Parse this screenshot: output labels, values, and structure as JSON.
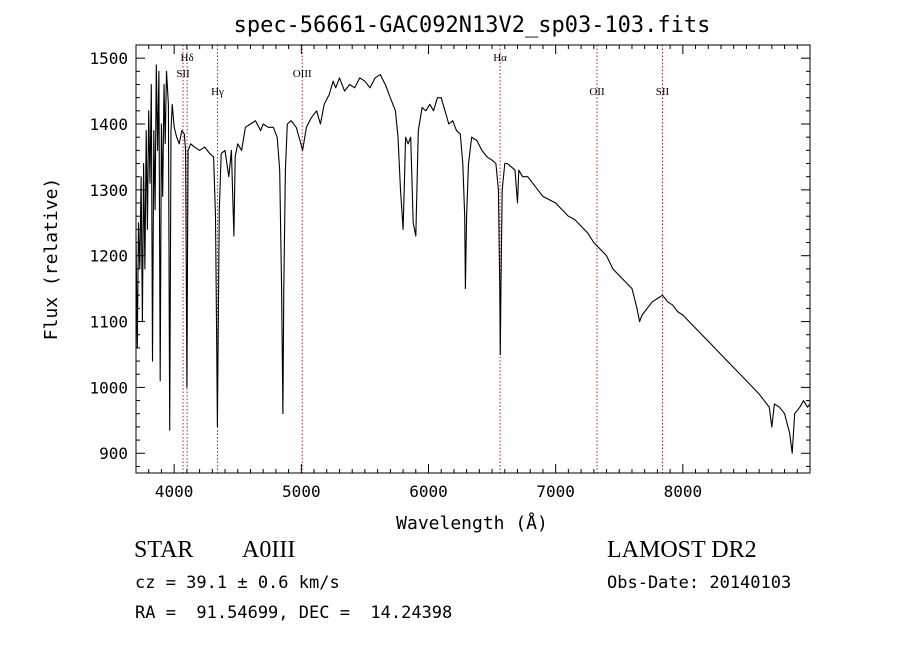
{
  "chart_data": {
    "type": "line",
    "title": "spec-56661-GAC092N13V2_sp03-103.fits",
    "xlabel": "Wavelength (Å)",
    "ylabel": "Flux (relative)",
    "xlim": [
      3700,
      9000
    ],
    "ylim": [
      870,
      1520
    ],
    "xticks": [
      4000,
      5000,
      6000,
      7000,
      8000
    ],
    "xtick_labels": [
      "4000",
      "5000",
      "6000",
      "7000",
      "8000"
    ],
    "yticks": [
      900,
      1000,
      1100,
      1200,
      1300,
      1400,
      1500
    ],
    "ytick_labels": [
      "900",
      "1000",
      "1100",
      "1200",
      "1300",
      "1400",
      "1500"
    ],
    "grid": false,
    "legend": "none",
    "line_color": "#000000",
    "marker_color": "#b22222",
    "markers": [
      {
        "label": "Hδ",
        "x": 4102,
        "row": 0
      },
      {
        "label": "SII",
        "x": 4070,
        "row": 1
      },
      {
        "label": "Hγ",
        "x": 4341,
        "row": 2
      },
      {
        "label": "OIII",
        "x": 5007,
        "row": 1
      },
      {
        "label": "Hα",
        "x": 6563,
        "row": 0
      },
      {
        "label": "OII",
        "x": 7325,
        "row": 2
      },
      {
        "label": "SII",
        "x": 7840,
        "row": 2
      }
    ],
    "series": [
      {
        "points": [
          [
            3700,
            1230
          ],
          [
            3710,
            1060
          ],
          [
            3720,
            1250
          ],
          [
            3730,
            1180
          ],
          [
            3740,
            1320
          ],
          [
            3750,
            1100
          ],
          [
            3760,
            1340
          ],
          [
            3770,
            1180
          ],
          [
            3780,
            1390
          ],
          [
            3790,
            1240
          ],
          [
            3800,
            1420
          ],
          [
            3810,
            1310
          ],
          [
            3820,
            1460
          ],
          [
            3830,
            1040
          ],
          [
            3840,
            1390
          ],
          [
            3850,
            1270
          ],
          [
            3860,
            1490
          ],
          [
            3870,
            1360
          ],
          [
            3880,
            1480
          ],
          [
            3890,
            1010
          ],
          [
            3900,
            1400
          ],
          [
            3910,
            1290
          ],
          [
            3920,
            1460
          ],
          [
            3930,
            1370
          ],
          [
            3940,
            1480
          ],
          [
            3955,
            1430
          ],
          [
            3965,
            935
          ],
          [
            3975,
            1390
          ],
          [
            3985,
            1430
          ],
          [
            4000,
            1395
          ],
          [
            4020,
            1380
          ],
          [
            4040,
            1370
          ],
          [
            4060,
            1390
          ],
          [
            4080,
            1385
          ],
          [
            4090,
            1360
          ],
          [
            4095,
            1200
          ],
          [
            4100,
            1000
          ],
          [
            4105,
            1200
          ],
          [
            4110,
            1360
          ],
          [
            4130,
            1370
          ],
          [
            4160,
            1365
          ],
          [
            4200,
            1360
          ],
          [
            4240,
            1365
          ],
          [
            4280,
            1355
          ],
          [
            4310,
            1350
          ],
          [
            4325,
            1260
          ],
          [
            4335,
            1050
          ],
          [
            4340,
            940
          ],
          [
            4345,
            1050
          ],
          [
            4355,
            1270
          ],
          [
            4370,
            1355
          ],
          [
            4400,
            1360
          ],
          [
            4430,
            1320
          ],
          [
            4450,
            1360
          ],
          [
            4470,
            1230
          ],
          [
            4480,
            1350
          ],
          [
            4500,
            1370
          ],
          [
            4530,
            1360
          ],
          [
            4560,
            1395
          ],
          [
            4600,
            1400
          ],
          [
            4640,
            1405
          ],
          [
            4680,
            1390
          ],
          [
            4700,
            1400
          ],
          [
            4740,
            1395
          ],
          [
            4780,
            1395
          ],
          [
            4810,
            1380
          ],
          [
            4830,
            1330
          ],
          [
            4845,
            1150
          ],
          [
            4855,
            960
          ],
          [
            4862,
            1150
          ],
          [
            4875,
            1330
          ],
          [
            4890,
            1400
          ],
          [
            4920,
            1405
          ],
          [
            4960,
            1395
          ],
          [
            4990,
            1375
          ],
          [
            5010,
            1360
          ],
          [
            5040,
            1395
          ],
          [
            5080,
            1410
          ],
          [
            5120,
            1420
          ],
          [
            5150,
            1400
          ],
          [
            5180,
            1430
          ],
          [
            5220,
            1445
          ],
          [
            5250,
            1465
          ],
          [
            5270,
            1455
          ],
          [
            5300,
            1470
          ],
          [
            5340,
            1450
          ],
          [
            5380,
            1460
          ],
          [
            5420,
            1455
          ],
          [
            5460,
            1470
          ],
          [
            5500,
            1465
          ],
          [
            5540,
            1455
          ],
          [
            5580,
            1470
          ],
          [
            5620,
            1475
          ],
          [
            5660,
            1460
          ],
          [
            5700,
            1440
          ],
          [
            5740,
            1420
          ],
          [
            5760,
            1380
          ],
          [
            5780,
            1300
          ],
          [
            5800,
            1240
          ],
          [
            5820,
            1380
          ],
          [
            5840,
            1370
          ],
          [
            5860,
            1380
          ],
          [
            5880,
            1250
          ],
          [
            5900,
            1230
          ],
          [
            5920,
            1390
          ],
          [
            5950,
            1425
          ],
          [
            5980,
            1420
          ],
          [
            6010,
            1430
          ],
          [
            6040,
            1420
          ],
          [
            6070,
            1440
          ],
          [
            6100,
            1440
          ],
          [
            6130,
            1420
          ],
          [
            6160,
            1400
          ],
          [
            6190,
            1405
          ],
          [
            6220,
            1390
          ],
          [
            6250,
            1385
          ],
          [
            6270,
            1340
          ],
          [
            6285,
            1260
          ],
          [
            6290,
            1150
          ],
          [
            6300,
            1260
          ],
          [
            6315,
            1340
          ],
          [
            6340,
            1380
          ],
          [
            6380,
            1375
          ],
          [
            6420,
            1360
          ],
          [
            6460,
            1350
          ],
          [
            6500,
            1345
          ],
          [
            6530,
            1340
          ],
          [
            6550,
            1300
          ],
          [
            6560,
            1160
          ],
          [
            6565,
            1050
          ],
          [
            6570,
            1160
          ],
          [
            6580,
            1300
          ],
          [
            6600,
            1340
          ],
          [
            6620,
            1340
          ],
          [
            6650,
            1335
          ],
          [
            6680,
            1330
          ],
          [
            6700,
            1280
          ],
          [
            6710,
            1330
          ],
          [
            6740,
            1320
          ],
          [
            6780,
            1320
          ],
          [
            6820,
            1310
          ],
          [
            6860,
            1300
          ],
          [
            6900,
            1290
          ],
          [
            6950,
            1285
          ],
          [
            7000,
            1280
          ],
          [
            7050,
            1270
          ],
          [
            7100,
            1260
          ],
          [
            7150,
            1255
          ],
          [
            7200,
            1245
          ],
          [
            7250,
            1235
          ],
          [
            7300,
            1220
          ],
          [
            7350,
            1210
          ],
          [
            7400,
            1200
          ],
          [
            7450,
            1180
          ],
          [
            7500,
            1170
          ],
          [
            7550,
            1160
          ],
          [
            7600,
            1150
          ],
          [
            7640,
            1120
          ],
          [
            7660,
            1100
          ],
          [
            7680,
            1110
          ],
          [
            7720,
            1120
          ],
          [
            7760,
            1130
          ],
          [
            7800,
            1135
          ],
          [
            7840,
            1140
          ],
          [
            7880,
            1130
          ],
          [
            7920,
            1125
          ],
          [
            7960,
            1115
          ],
          [
            8000,
            1110
          ],
          [
            8050,
            1100
          ],
          [
            8100,
            1090
          ],
          [
            8150,
            1080
          ],
          [
            8200,
            1070
          ],
          [
            8250,
            1060
          ],
          [
            8300,
            1050
          ],
          [
            8350,
            1040
          ],
          [
            8400,
            1030
          ],
          [
            8450,
            1020
          ],
          [
            8500,
            1010
          ],
          [
            8550,
            1000
          ],
          [
            8600,
            990
          ],
          [
            8640,
            980
          ],
          [
            8680,
            970
          ],
          [
            8700,
            940
          ],
          [
            8720,
            975
          ],
          [
            8760,
            970
          ],
          [
            8800,
            960
          ],
          [
            8840,
            930
          ],
          [
            8860,
            900
          ],
          [
            8880,
            960
          ],
          [
            8920,
            970
          ],
          [
            8950,
            980
          ],
          [
            8980,
            970
          ],
          [
            9000,
            975
          ]
        ]
      }
    ]
  },
  "footer": {
    "object_class": "STAR",
    "subclass": "A0III",
    "survey": "LAMOST DR2",
    "redshift": "cz = 39.1 ± 0.6 km/s",
    "obs_date": "Obs-Date: 20140103",
    "coords": "RA =  91.54699, DEC =  14.24398"
  }
}
